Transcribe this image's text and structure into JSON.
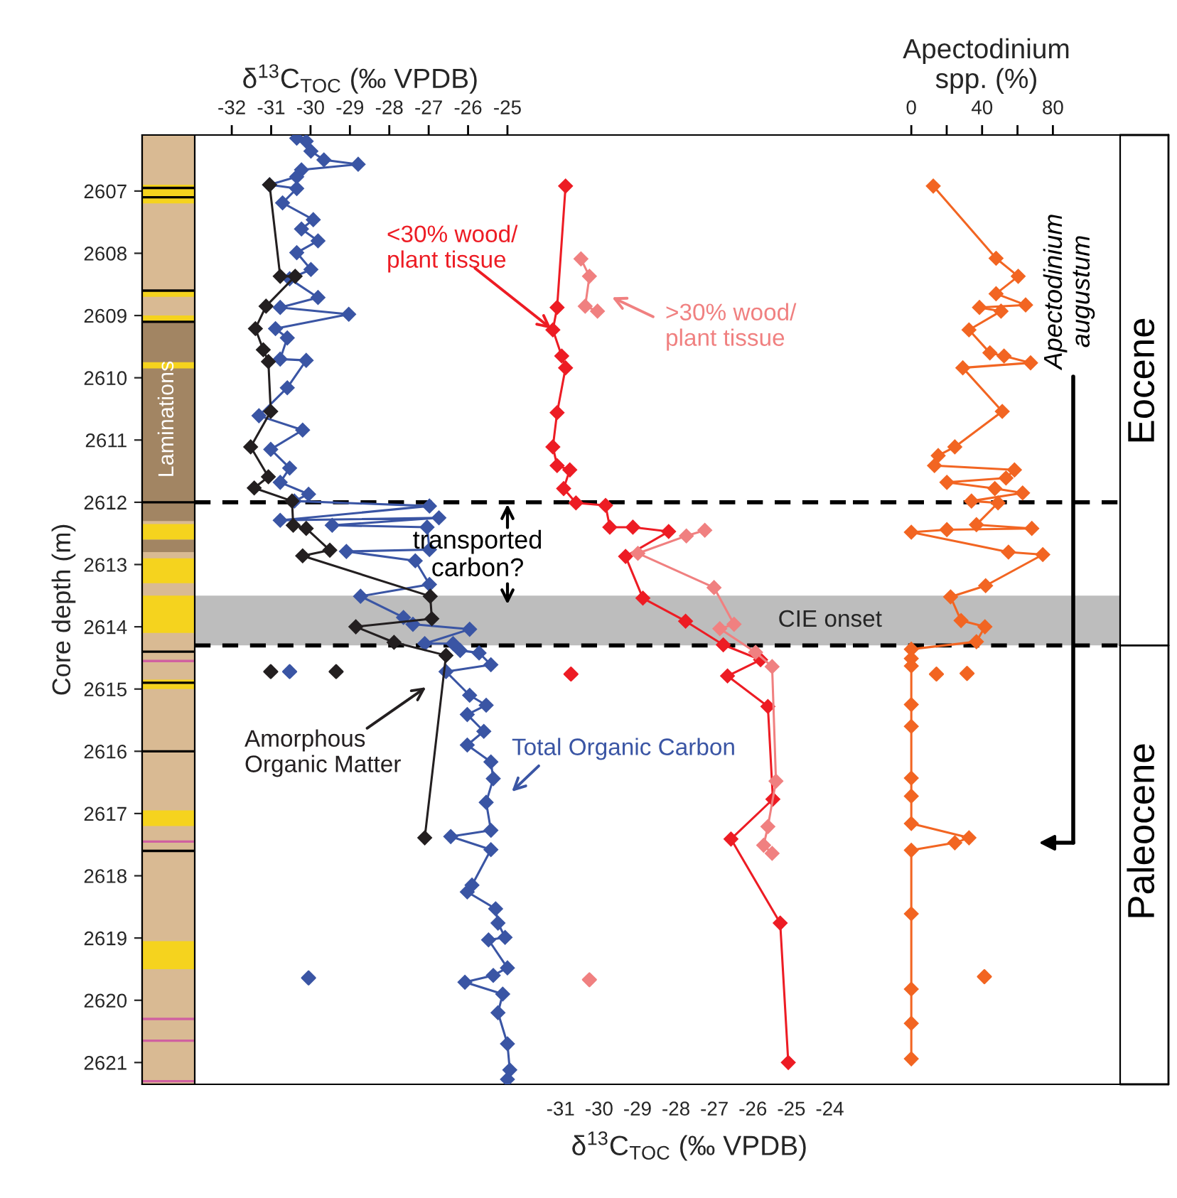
{
  "chart_data": [
    {
      "type": "line",
      "xlabel": "δ$^{13}$C$_{TOC}$ (‰ VPDB)",
      "ylabel": "Core depth (m)",
      "marker": "diamond",
      "line_style": "solid",
      "xlim": [
        -32.94,
        -24.53
      ],
      "xticks": [
        -32,
        -31,
        -30,
        -29,
        -28,
        -27,
        -26,
        -25
      ],
      "ylim": [
        2621.35,
        2606.1
      ],
      "yticks": [
        2607,
        2608,
        2609,
        2610,
        2611,
        2612,
        2613,
        2614,
        2615,
        2616,
        2617,
        2618,
        2619,
        2620,
        2621
      ],
      "series": [
        {
          "name": "Total Organic Carbon",
          "color": "#3a55a4",
          "x": [
            -30.35,
            -30.11,
            -29.99,
            -29.66,
            -28.79,
            -30.23,
            -30.35,
            -31.04,
            -30.35,
            -30.71,
            -29.93,
            -30.23,
            -29.81,
            -30.35,
            -29.99,
            -30.53,
            -29.81,
            -30.77,
            -29.03,
            -30.89,
            -30.59,
            -30.77,
            -30.11,
            -30.59,
            -31.31,
            -30.2,
            -31.01,
            -30.53,
            -30.77,
            -30.05,
            -30.41,
            -26.98,
            -30.77,
            -26.74,
            -29.45,
            -27.04,
            -26.98,
            -29.09,
            -27.34,
            -26.98,
            -28.73,
            -27.64,
            -27.4,
            -25.96,
            -27.1,
            -26.38,
            -26.2,
            -25.72,
            -25.42,
            -26.56,
            -25.96,
            -25.54,
            -26.02,
            -25.6,
            -26.02,
            -25.42,
            -25.36,
            -25.54,
            -25.42,
            -26.44,
            -25.42,
            -25.9,
            -26.02,
            -25.3,
            -25.24,
            -25.06,
            -25.48,
            -25.0,
            -25.36,
            -26.08,
            -25.12,
            -25.24,
            -25.0,
            -24.94,
            -25.0
          ],
          "values": [
            2606.15,
            2606.2,
            2606.36,
            2606.5,
            2606.57,
            2606.66,
            2606.77,
            2606.9,
            2606.96,
            2607.19,
            2607.46,
            2607.61,
            2607.8,
            2607.99,
            2608.26,
            2608.41,
            2608.71,
            2608.87,
            2608.98,
            2609.21,
            2609.36,
            2609.7,
            2609.72,
            2610.16,
            2610.61,
            2610.84,
            2611.15,
            2611.45,
            2611.68,
            2611.87,
            2611.98,
            2612.06,
            2612.29,
            2612.25,
            2612.37,
            2612.4,
            2612.76,
            2612.79,
            2612.94,
            2613.32,
            2613.51,
            2613.85,
            2613.96,
            2614.04,
            2614.27,
            2614.27,
            2614.38,
            2614.42,
            2614.61,
            2614.72,
            2615.1,
            2615.26,
            2615.41,
            2615.68,
            2615.9,
            2616.17,
            2616.44,
            2616.82,
            2617.27,
            2617.37,
            2617.58,
            2618.15,
            2618.26,
            2618.53,
            2618.76,
            2618.99,
            2619.03,
            2619.48,
            2619.6,
            2619.71,
            2619.9,
            2620.2,
            2620.7,
            2621.12,
            2621.27
          ]
        },
        {
          "name": "Amorphous\nOrganic Matter",
          "color": "#231f20",
          "x": [
            -31.04,
            -30.77,
            -30.39,
            -31.13,
            -31.4,
            -31.2,
            -31.07,
            -31.01,
            -31.52,
            -31.07,
            -31.43,
            -30.47,
            -30.44,
            -30.11,
            -29.51,
            -30.2,
            -26.96,
            -26.92,
            -28.85,
            -27.88,
            -26.56,
            -27.1
          ],
          "values": [
            2606.9,
            2608.37,
            2608.37,
            2608.85,
            2609.21,
            2609.55,
            2609.74,
            2610.54,
            2611.11,
            2611.59,
            2611.77,
            2611.98,
            2612.37,
            2612.42,
            2612.77,
            2612.86,
            2613.51,
            2613.87,
            2614.0,
            2614.25,
            2614.46,
            2617.39
          ]
        },
        {
          "type": "scatter",
          "color": "#3a55a4",
          "x": [
            -30.53,
            -30.05
          ],
          "values": [
            2614.72,
            2619.64
          ]
        },
        {
          "type": "scatter",
          "color": "#231f20",
          "x": [
            -31.01,
            -29.35
          ],
          "values": [
            2614.72,
            2614.72
          ]
        }
      ],
      "ref_lines": [
        {
          "axis": "y",
          "value": 2612.0,
          "line_style": "dashed",
          "color": "#000000"
        },
        {
          "axis": "y",
          "value": 2614.3,
          "line_style": "dashed",
          "color": "#000000"
        }
      ],
      "bands": [
        {
          "axis": "y",
          "from": 2613.5,
          "to": 2614.3,
          "color": "#bdbdbd"
        }
      ],
      "annotations": [
        "transported\ncarbon?",
        "Laminations"
      ]
    },
    {
      "type": "line",
      "xlabel": "δ$^{13}$C$_{TOC}$ (‰ VPDB)",
      "marker": "diamond",
      "line_style": "solid",
      "tick_labels": "x",
      "xlim": [
        -31.9,
        -23.4
      ],
      "xticks": [
        -31,
        -30,
        -29,
        -28,
        -27,
        -26,
        -25,
        -24
      ],
      "ylim": [
        2621.35,
        2606.1
      ],
      "series": [
        {
          "name": "<30% wood/\nplant tissue",
          "color": "#ed1c24",
          "x": [
            -30.87,
            -31.09,
            -31.2,
            -30.97,
            -30.87,
            -31.09,
            -31.2,
            -31.09,
            -30.76,
            -30.92,
            -30.6,
            -29.83,
            -29.72,
            -29.12,
            -28.19,
            -29.31,
            -28.86,
            -27.75,
            -26.77,
            -25.8,
            -26.66,
            -25.61,
            -25.48,
            -26.57,
            -25.29,
            -25.08
          ],
          "values": [
            2606.92,
            2608.87,
            2609.23,
            2609.65,
            2609.84,
            2610.56,
            2611.11,
            2611.41,
            2611.48,
            2611.78,
            2612.01,
            2612.05,
            2612.4,
            2612.4,
            2612.47,
            2612.87,
            2613.54,
            2613.91,
            2614.29,
            2614.53,
            2614.79,
            2615.28,
            2616.77,
            2617.41,
            2618.76,
            2621.0
          ]
        },
        {
          "name": ">30% wood/\nplant tissue",
          "color": "#f08080",
          "x": [
            -30.47,
            -30.25,
            -30.36,
            -30.04,
            null,
            -27.25,
            -27.73,
            -28.99,
            -27.01,
            -26.49,
            -26.86,
            -25.93,
            -25.5,
            -25.4,
            -25.61,
            -25.72,
            -25.5
          ],
          "values": [
            2608.09,
            2608.37,
            2608.85,
            2608.93,
            null,
            2612.45,
            2612.54,
            2612.82,
            2613.37,
            2613.96,
            2614.03,
            2614.41,
            2614.64,
            2616.48,
            2617.21,
            2617.51,
            2617.64
          ]
        },
        {
          "type": "scatter",
          "color": "#ed1c24",
          "x": [
            -30.73
          ],
          "values": [
            2614.76
          ]
        },
        {
          "type": "scatter",
          "color": "#f08080",
          "x": [
            -30.25
          ],
          "values": [
            2619.67
          ]
        }
      ],
      "ref_lines": [
        {
          "axis": "y",
          "value": 2612.0,
          "line_style": "dashed",
          "color": "#000000"
        },
        {
          "axis": "y",
          "value": 2614.3,
          "line_style": "dashed",
          "color": "#000000"
        }
      ],
      "bands": [
        {
          "axis": "y",
          "from": 2613.5,
          "to": 2614.3,
          "color": "#bdbdbd",
          "label": "CIE onset"
        }
      ]
    },
    {
      "type": "line",
      "xlabel": "Apectodinium\nspp. (%)",
      "marker": "diamond",
      "line_style": "solid",
      "tick_labels": "x",
      "xlim": [
        -33,
        118
      ],
      "xticks": [
        0,
        {
          "value": 20,
          "label": null
        },
        40,
        {
          "value": 60,
          "label": null
        },
        80
      ],
      "ylim": [
        2621.35,
        2606.1
      ],
      "series": [
        {
          "color": "#f26522",
          "x": [
            12.4,
            47.9,
            60.4,
            47.9,
            64.6,
            38.5,
            50.7,
            32.6,
            44.4,
            52.4,
            67.4,
            29.1,
            51.4,
            24.6,
            15.2,
            13.1,
            58.3,
            53.5,
            20.1,
            47.2,
            62.9,
            34,
            49,
            36.8,
            68.1,
            20.1,
            0,
            54.9,
            74.3,
            42,
            22.2,
            28.1,
            41.6,
            36.8,
            0,
            0,
            0,
            0,
            0,
            0,
            0,
            0,
            32.6,
            24.6,
            0,
            0,
            0,
            0,
            0
          ],
          "values": [
            2606.92,
            2608.08,
            2608.37,
            2608.65,
            2608.83,
            2608.87,
            2608.93,
            2609.23,
            2609.6,
            2609.65,
            2609.76,
            2609.84,
            2610.54,
            2611.11,
            2611.25,
            2611.41,
            2611.48,
            2611.61,
            2611.68,
            2611.78,
            2611.85,
            2611.98,
            2612.01,
            2612.36,
            2612.42,
            2612.44,
            2612.48,
            2612.8,
            2612.84,
            2613.34,
            2613.52,
            2613.9,
            2614.0,
            2614.24,
            2614.36,
            2614.51,
            2614.63,
            2615.25,
            2615.6,
            2616.43,
            2616.72,
            2617.16,
            2617.39,
            2617.47,
            2617.59,
            2618.61,
            2619.82,
            2620.37,
            2620.94
          ]
        },
        {
          "type": "scatter",
          "color": "#f26522",
          "x": [
            14.2,
            31.5,
            41.3
          ],
          "values": [
            2614.76,
            2614.75,
            2619.62
          ]
        }
      ],
      "ref_lines": [
        {
          "axis": "y",
          "value": 2612.0,
          "line_style": "dashed",
          "color": "#000000"
        },
        {
          "axis": "y",
          "value": 2614.3,
          "line_style": "dashed",
          "color": "#000000"
        }
      ],
      "bands": [
        {
          "axis": "y",
          "from": 2613.5,
          "to": 2614.3,
          "color": "#bdbdbd"
        }
      ],
      "annotations": [
        "Apectodinium\naugustum",
        "Eocene",
        "Paleocene"
      ]
    }
  ]
}
